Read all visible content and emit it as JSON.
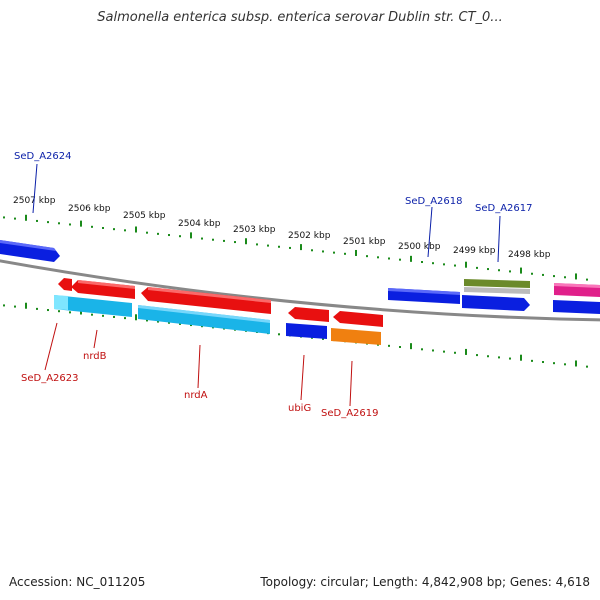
{
  "title": "Salmonella enterica subsp. enterica serovar Dublin str. CT_0...",
  "accession": "Accession: NC_011205",
  "summary": "Topology: circular; Length: 4,842,908 bp; Genes: 4,618",
  "colors": {
    "backbone": "#888888",
    "tick": "#1a8a1a",
    "forward_label": "#0a1fa8",
    "reverse_label": "#c01010",
    "cds_blue": "#0a1fe0",
    "cds_red": "#e81010",
    "cds_cyan": "#1ab4e8",
    "cds_orange": "#f08010",
    "cds_green": "#6b8a2a",
    "cds_pink": "#e0208a"
  },
  "scale_labels": [
    "2507 kbp",
    "2506 kbp",
    "2505 kbp",
    "2504 kbp",
    "2503 kbp",
    "2502 kbp",
    "2501 kbp",
    "2500 kbp",
    "2499 kbp",
    "2498 kbp"
  ],
  "forward_gene_labels": [
    "SeD_A2624",
    "SeD_A2618",
    "SeD_A2617"
  ],
  "reverse_gene_labels": [
    "SeD_A2623",
    "nrdB",
    "nrdA",
    "ubiG",
    "SeD_A2619"
  ]
}
